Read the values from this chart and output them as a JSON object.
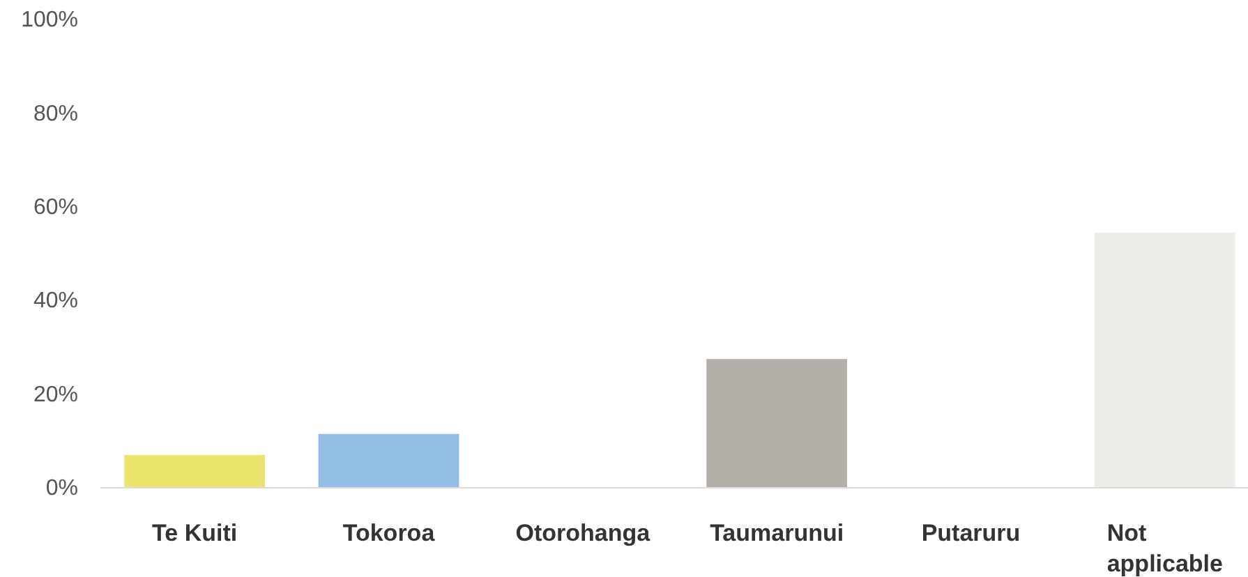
{
  "chart_data": {
    "type": "bar",
    "categories": [
      "Te Kuiti",
      "Tokoroa",
      "Otorohanga",
      "Taumarunui",
      "Putaruru",
      "Not applicable"
    ],
    "values": [
      7,
      11.5,
      0,
      27.5,
      0,
      54.5
    ],
    "colors": [
      "#e8e46c",
      "#93bde2",
      null,
      "#b3aea8",
      null,
      "#efedea"
    ],
    "ylim": [
      0,
      100
    ],
    "yticks": [
      {
        "value": 0,
        "label": "0%"
      },
      {
        "value": 20,
        "label": "20%"
      },
      {
        "value": 40,
        "label": "40%"
      },
      {
        "value": 60,
        "label": "60%"
      },
      {
        "value": 80,
        "label": "80%"
      },
      {
        "value": 100,
        "label": "100%"
      }
    ]
  }
}
